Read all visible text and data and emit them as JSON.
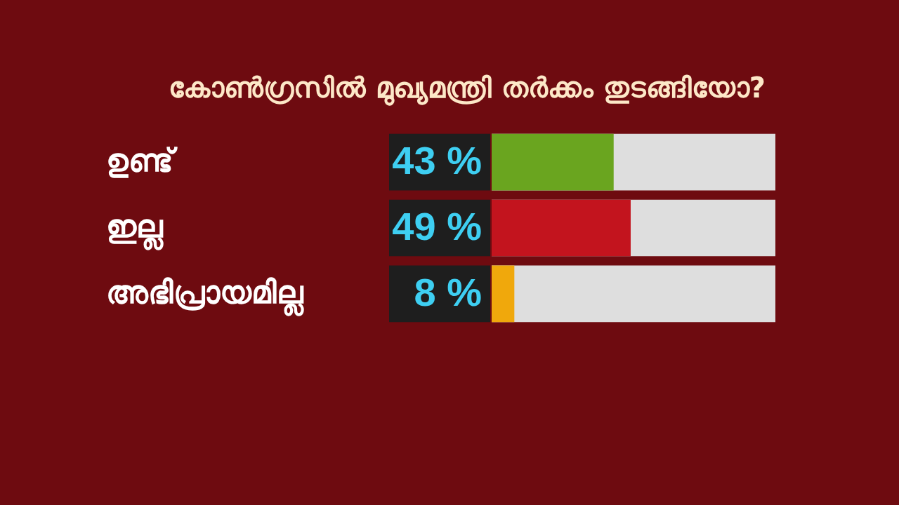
{
  "chart_data": {
    "type": "bar",
    "orientation": "horizontal",
    "title": "കോൺഗ്രസിൽ മുഖ്യമന്ത്രി തർക്കം തുടങ്ങിയോ?",
    "categories": [
      "ഉണ്ട്",
      "ഇല്ല",
      "അഭിപ്രായമില്ല"
    ],
    "values": [
      43,
      49,
      8
    ],
    "colors": [
      "#6aa51f",
      "#c3141e",
      "#f0a80c"
    ],
    "value_labels": [
      "43 %",
      "49 %",
      "8 %"
    ],
    "xlim": [
      0,
      100
    ],
    "tick_labels": "y"
  }
}
